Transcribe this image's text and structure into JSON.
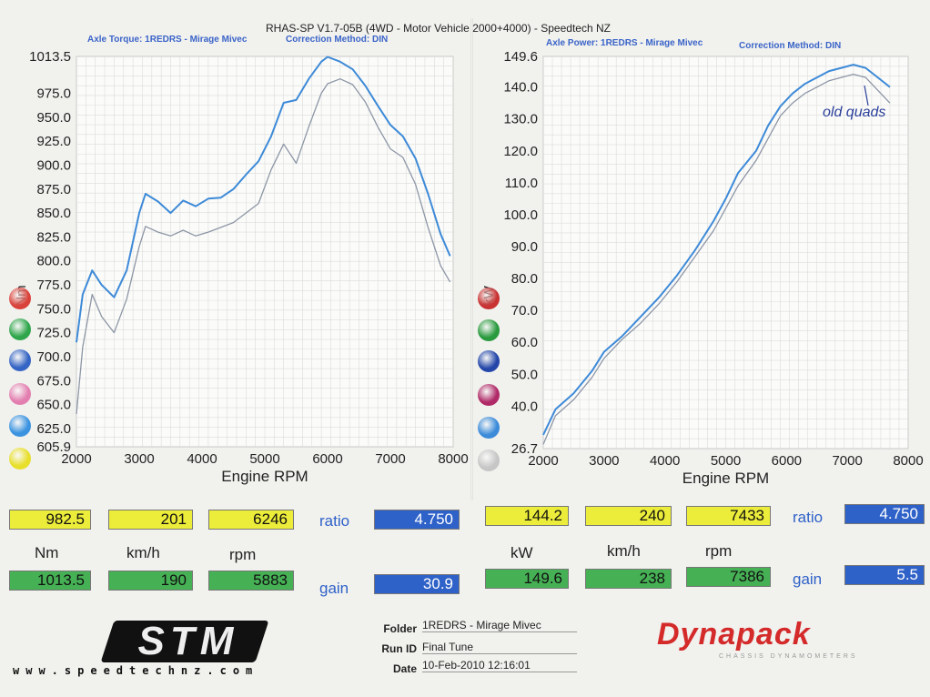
{
  "header": {
    "title": "RHAS-SP V1.7-05B  (4WD - Motor Vehicle 2000+4000) - Speedtech NZ"
  },
  "chart_data": [
    {
      "type": "line",
      "title": "Axle Torque: 1REDRS - Mirage Mivec",
      "subtitle": "Correction Method: DIN",
      "xlabel": "Engine RPM",
      "ylabel": "Nm",
      "xlim": [
        2000,
        8000
      ],
      "ylim": [
        605.9,
        1013.5
      ],
      "yticks": [
        "1013.5",
        "975.0",
        "950.0",
        "925.0",
        "900.0",
        "875.0",
        "850.0",
        "825.0",
        "800.0",
        "775.0",
        "750.0",
        "725.0",
        "700.0",
        "675.0",
        "650.0",
        "625.0",
        "605.9"
      ],
      "xticks": [
        "2000",
        "3000",
        "4000",
        "5000",
        "6000",
        "7000",
        "8000"
      ],
      "series": [
        {
          "color": "#3d8ad8",
          "x": [
            2000,
            2100,
            2250,
            2400,
            2600,
            2800,
            3000,
            3100,
            3300,
            3500,
            3700,
            3900,
            4100,
            4300,
            4500,
            4700,
            4900,
            5100,
            5300,
            5500,
            5700,
            5900,
            6000,
            6200,
            6400,
            6600,
            6800,
            7000,
            7200,
            7400,
            7600,
            7800,
            7950
          ],
          "y": [
            715,
            765,
            790,
            775,
            762,
            790,
            850,
            870,
            862,
            850,
            863,
            857,
            865,
            866,
            875,
            890,
            904,
            930,
            965,
            968,
            990,
            1008,
            1013,
            1008,
            1000,
            983,
            962,
            942,
            930,
            907,
            870,
            828,
            805
          ]
        },
        {
          "color": "#8d96a6",
          "x": [
            2000,
            2100,
            2250,
            2400,
            2600,
            2800,
            3000,
            3100,
            3300,
            3500,
            3700,
            3900,
            4100,
            4300,
            4500,
            4700,
            4900,
            5100,
            5300,
            5500,
            5700,
            5900,
            6000,
            6200,
            6400,
            6600,
            6800,
            7000,
            7200,
            7400,
            7600,
            7800,
            7950
          ],
          "y": [
            640,
            710,
            765,
            742,
            725,
            760,
            815,
            836,
            830,
            826,
            832,
            826,
            830,
            835,
            840,
            850,
            860,
            895,
            922,
            902,
            940,
            975,
            985,
            990,
            984,
            966,
            940,
            917,
            908,
            880,
            835,
            795,
            778
          ]
        }
      ]
    },
    {
      "type": "line",
      "title": "Axle Power: 1REDRS - Mirage Mivec",
      "subtitle": "Correction Method: DIN",
      "xlabel": "Engine RPM",
      "ylabel": "kW",
      "xlim": [
        2000,
        8000
      ],
      "ylim": [
        26.7,
        149.6
      ],
      "yticks": [
        "149.6",
        "140.0",
        "130.0",
        "120.0",
        "110.0",
        "100.0",
        "90.0",
        "80.0",
        "70.0",
        "60.0",
        "50.0",
        "40.0",
        "26.7"
      ],
      "xticks": [
        "2000",
        "3000",
        "4000",
        "5000",
        "6000",
        "7000",
        "8000"
      ],
      "series": [
        {
          "color": "#3d8ad8",
          "x": [
            2000,
            2200,
            2500,
            2800,
            3000,
            3300,
            3600,
            3900,
            4200,
            4500,
            4800,
            5000,
            5200,
            5500,
            5700,
            5900,
            6100,
            6300,
            6500,
            6700,
            6900,
            7100,
            7300,
            7500,
            7700
          ],
          "y": [
            31,
            39,
            44,
            51,
            57,
            62,
            68,
            74,
            81,
            89,
            98,
            105,
            113,
            120,
            128,
            134,
            138,
            141,
            143,
            145,
            146,
            147,
            146,
            143,
            140
          ]
        },
        {
          "color": "#8d96a6",
          "x": [
            2000,
            2200,
            2500,
            2800,
            3000,
            3300,
            3600,
            3900,
            4200,
            4500,
            4800,
            5000,
            5200,
            5500,
            5700,
            5900,
            6100,
            6300,
            6500,
            6700,
            6900,
            7100,
            7300,
            7500,
            7700
          ],
          "y": [
            28,
            37,
            42,
            49,
            55,
            61,
            66,
            72,
            79,
            87,
            95,
            102,
            109,
            117,
            124,
            131,
            135,
            138,
            140,
            142,
            143,
            144,
            143,
            139,
            135
          ]
        }
      ],
      "annotation": "old quads"
    }
  ],
  "readouts": {
    "torque": {
      "max_value": "982.5",
      "max_speed": "201",
      "max_rpm": "6246",
      "ratio_label": "ratio",
      "ratio": "4.750",
      "unit_value": "Nm",
      "unit_speed": "km/h",
      "unit_rpm": "rpm",
      "peak_value": "1013.5",
      "peak_speed": "190",
      "peak_rpm": "5883",
      "gain_label": "gain",
      "gain": "30.9"
    },
    "power": {
      "max_value": "144.2",
      "max_speed": "240",
      "max_rpm": "7433",
      "ratio_label": "ratio",
      "ratio": "4.750",
      "unit_value": "kW",
      "unit_speed": "km/h",
      "unit_rpm": "rpm",
      "peak_value": "149.6",
      "peak_speed": "238",
      "peak_rpm": "7386",
      "gain_label": "gain",
      "gain": "5.5"
    }
  },
  "legend_colors": [
    "#d9423b",
    "#2fa64b",
    "#3464c4",
    "#e37fb0",
    "#3b93e0",
    "#e8df2a"
  ],
  "legend_colors_right": [
    "#c83232",
    "#2a9a3e",
    "#2346a8",
    "#b02a68",
    "#3b8bd9",
    "#c6c6c6"
  ],
  "footer": {
    "logo_left": "STM",
    "website": "www.speedtechnz.com",
    "folder_label": "Folder",
    "folder_value": "1REDRS - Mirage Mivec",
    "runid_label": "Run ID",
    "runid_value": "Final Tune",
    "date_label": "Date",
    "date_value": "10-Feb-2010  12:16:01",
    "logo_right": "Dynapack",
    "logo_right_sub": "CHASSIS DYNAMOMETERS"
  }
}
